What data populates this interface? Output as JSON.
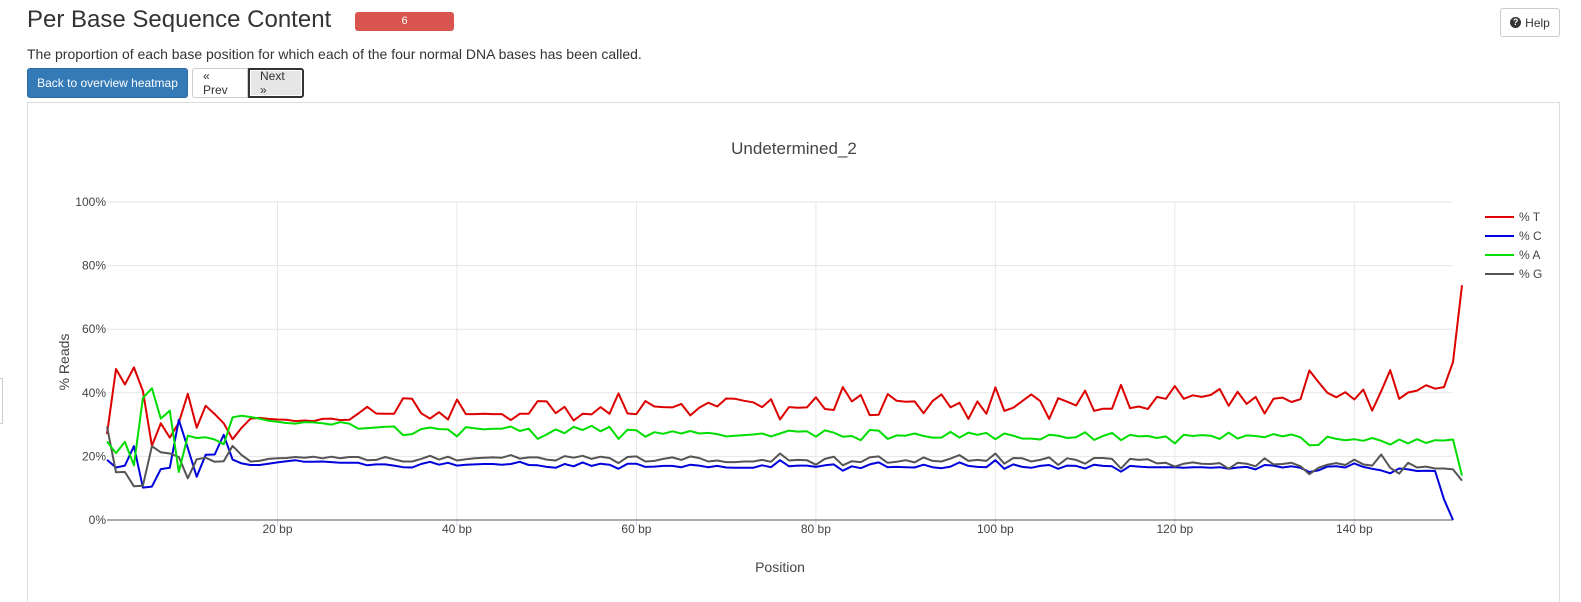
{
  "header": {
    "title": "Per Base Sequence Content",
    "badge": "6",
    "help_label": "Help",
    "description": "The proportion of each base position for which each of the four normal DNA bases has been called."
  },
  "nav": {
    "back_label": "Back to overview heatmap",
    "prev_label": "« Prev",
    "next_label": "Next »"
  },
  "chart_data": {
    "type": "line",
    "title": "Undetermined_2",
    "xlabel": "Position",
    "ylabel": "% Reads",
    "xlim": [
      1,
      151
    ],
    "ylim": [
      0,
      100
    ],
    "x_ticks": [
      {
        "value": 20,
        "label": "20 bp"
      },
      {
        "value": 40,
        "label": "40 bp"
      },
      {
        "value": 60,
        "label": "60 bp"
      },
      {
        "value": 80,
        "label": "80 bp"
      },
      {
        "value": 100,
        "label": "100 bp"
      },
      {
        "value": 120,
        "label": "120 bp"
      },
      {
        "value": 140,
        "label": "140 bp"
      }
    ],
    "y_ticks": [
      {
        "value": 0,
        "label": "0%"
      },
      {
        "value": 20,
        "label": "20%"
      },
      {
        "value": 40,
        "label": "40%"
      },
      {
        "value": 60,
        "label": "60%"
      },
      {
        "value": 80,
        "label": "80%"
      },
      {
        "value": 100,
        "label": "100%"
      }
    ],
    "grid": true,
    "legend_position": "top-right",
    "series": [
      {
        "name": "% T",
        "color": "#dd0000",
        "values": [
          27.0,
          47.5,
          42.6,
          48.0,
          40.6,
          23.3,
          30.4,
          25.9,
          30.6,
          39.7,
          29.0,
          35.9,
          33.3,
          30.4,
          25.4,
          29.0,
          31.9,
          32.1,
          31.8,
          31.6,
          31.5,
          31.1,
          31.3,
          31.1,
          31.8,
          31.9,
          31.4,
          31.5,
          33.5,
          35.6,
          33.5,
          33.4,
          33.4,
          38.3,
          38.1,
          33.6,
          31.9,
          33.9,
          31.6,
          37.9,
          33.3,
          33.3,
          33.4,
          33.3,
          33.3,
          31.4,
          33.4,
          33.4,
          37.4,
          37.3,
          33.6,
          35.6,
          31.3,
          33.4,
          33.2,
          35.5,
          33.4,
          39.8,
          33.5,
          33.3,
          37.4,
          35.7,
          35.5,
          35.4,
          36.5,
          32.9,
          35.3,
          36.9,
          35.7,
          38.2,
          38.1,
          37.5,
          37.0,
          35.5,
          38.0,
          31.6,
          35.5,
          35.3,
          35.4,
          38.6,
          34.9,
          34.6,
          41.8,
          37.3,
          39.3,
          33.0,
          33.1,
          39.6,
          37.5,
          37.2,
          37.3,
          33.6,
          37.4,
          39.5,
          35.4,
          36.9,
          31.8,
          37.3,
          33.4,
          41.7,
          34.3,
          35.3,
          37.4,
          39.5,
          37.4,
          31.8,
          38.3,
          37.2,
          36.0,
          40.7,
          34.3,
          35.0,
          35.0,
          42.5,
          35.2,
          35.7,
          34.9,
          38.7,
          38.1,
          42.1,
          38.1,
          39.2,
          38.7,
          39.3,
          41.2,
          35.9,
          40.3,
          36.5,
          38.7,
          33.5,
          38.1,
          38.5,
          37.1,
          38.0,
          47.0,
          43.4,
          40.0,
          38.6,
          40.2,
          37.9,
          41.0,
          34.4,
          40.5,
          47.1,
          38.1,
          40.1,
          40.7,
          42.4,
          41.3,
          41.8,
          49.7,
          73.8
        ]
      },
      {
        "name": "% C",
        "color": "#0000dd",
        "values": [
          18.9,
          16.5,
          17.1,
          23.2,
          10.2,
          10.5,
          16.0,
          16.4,
          31.5,
          22.6,
          13.6,
          20.5,
          20.6,
          26.8,
          19.0,
          17.8,
          17.3,
          17.3,
          17.7,
          18.1,
          18.5,
          18.8,
          18.3,
          18.3,
          18.4,
          18.2,
          18.0,
          18.0,
          18.0,
          17.2,
          17.5,
          17.5,
          17.1,
          16.6,
          16.5,
          17.6,
          18.3,
          17.4,
          18.0,
          17.1,
          17.4,
          17.5,
          17.6,
          17.6,
          17.4,
          17.6,
          18.3,
          17.3,
          17.2,
          16.7,
          16.4,
          17.6,
          16.9,
          18.1,
          17.0,
          17.7,
          17.4,
          16.1,
          17.7,
          17.7,
          16.7,
          16.8,
          17.0,
          17.0,
          16.6,
          17.4,
          17.1,
          16.6,
          17.0,
          16.5,
          16.4,
          16.4,
          16.4,
          17.2,
          16.6,
          18.8,
          16.9,
          17.1,
          17.1,
          16.7,
          17.2,
          17.5,
          15.5,
          16.9,
          16.3,
          17.5,
          18.1,
          16.6,
          16.7,
          16.6,
          16.5,
          17.4,
          16.6,
          16.3,
          16.8,
          18.1,
          17.0,
          16.7,
          16.6,
          18.8,
          16.1,
          17.5,
          16.7,
          16.4,
          17.0,
          17.3,
          16.1,
          17.1,
          17.0,
          16.2,
          17.4,
          17.0,
          16.9,
          15.2,
          17.0,
          16.8,
          16.6,
          16.6,
          16.6,
          16.6,
          16.4,
          16.6,
          16.6,
          16.4,
          16.6,
          16.1,
          16.5,
          16.7,
          15.9,
          17.3,
          17.1,
          16.5,
          16.9,
          16.4,
          15.1,
          15.6,
          16.8,
          16.9,
          16.5,
          17.8,
          16.7,
          16.1,
          15.6,
          14.7,
          16.2,
          15.9,
          15.4,
          15.5,
          15.4,
          6.5,
          0.0
        ]
      },
      {
        "name": "% G",
        "color": "#555555",
        "values": [
          29.4,
          15.0,
          15.1,
          10.6,
          10.8,
          23.2,
          21.3,
          20.9,
          19.8,
          13.1,
          19.1,
          19.6,
          18.3,
          18.5,
          23.3,
          20.4,
          18.4,
          18.6,
          19.2,
          19.4,
          19.5,
          19.8,
          19.6,
          19.9,
          19.4,
          19.9,
          19.4,
          19.8,
          19.8,
          18.8,
          18.9,
          19.8,
          19.1,
          18.4,
          18.4,
          19.2,
          20.2,
          19.0,
          19.9,
          18.7,
          19.1,
          19.4,
          19.6,
          19.7,
          19.6,
          20.4,
          19.3,
          19.7,
          19.7,
          19.0,
          18.7,
          20.1,
          19.6,
          20.2,
          19.2,
          19.9,
          19.5,
          17.9,
          19.8,
          20.0,
          18.4,
          18.6,
          19.2,
          19.7,
          18.9,
          20.0,
          19.5,
          18.4,
          18.7,
          18.2,
          18.2,
          18.4,
          18.4,
          18.9,
          18.3,
          20.9,
          18.7,
          18.9,
          18.8,
          17.4,
          19.2,
          19.9,
          17.2,
          18.5,
          18.2,
          19.7,
          20.0,
          18.0,
          18.3,
          18.8,
          18.1,
          19.7,
          18.6,
          18.4,
          19.3,
          20.4,
          18.6,
          18.9,
          18.6,
          20.9,
          17.7,
          19.5,
          19.4,
          18.4,
          18.9,
          19.7,
          17.3,
          19.4,
          18.9,
          17.7,
          19.5,
          19.5,
          19.2,
          16.2,
          19.2,
          18.9,
          19.1,
          17.8,
          18.0,
          16.8,
          17.7,
          18.1,
          17.7,
          17.6,
          17.9,
          16.1,
          18.0,
          17.7,
          16.9,
          19.4,
          17.5,
          17.6,
          18.0,
          16.9,
          14.4,
          16.4,
          17.4,
          17.9,
          17.3,
          19.0,
          17.5,
          17.1,
          20.6,
          16.4,
          14.6,
          18.0,
          16.5,
          16.8,
          16.2,
          16.2,
          15.9,
          12.4
        ]
      },
      {
        "name": "% A",
        "color": "#00dd00",
        "values": [
          24.7,
          21.0,
          24.6,
          17.2,
          38.4,
          41.4,
          31.9,
          34.4,
          15.1,
          26.5,
          25.8,
          26.0,
          25.3,
          23.8,
          32.3,
          32.8,
          32.4,
          31.9,
          31.2,
          30.9,
          30.5,
          30.3,
          30.8,
          30.7,
          30.4,
          30.0,
          30.8,
          30.3,
          28.7,
          28.9,
          29.1,
          29.3,
          29.4,
          26.7,
          27.0,
          28.6,
          29.1,
          28.6,
          28.5,
          26.3,
          29.2,
          28.8,
          28.5,
          28.7,
          28.7,
          29.4,
          28.0,
          28.7,
          25.5,
          26.9,
          28.5,
          27.3,
          29.3,
          28.3,
          29.6,
          27.9,
          29.3,
          25.5,
          28.4,
          28.2,
          26.2,
          27.6,
          27.1,
          27.9,
          27.2,
          28.0,
          27.2,
          27.4,
          27.0,
          26.3,
          26.5,
          26.7,
          26.9,
          27.2,
          26.3,
          27.2,
          28.1,
          27.8,
          27.9,
          26.2,
          28.2,
          27.5,
          26.2,
          26.4,
          25.1,
          28.3,
          28.1,
          25.5,
          26.6,
          26.5,
          27.2,
          26.4,
          25.9,
          25.9,
          27.7,
          25.9,
          27.5,
          26.8,
          27.4,
          25.4,
          27.2,
          26.5,
          25.6,
          25.6,
          25.3,
          26.8,
          26.5,
          25.8,
          26.0,
          27.6,
          25.2,
          26.4,
          27.4,
          25.1,
          26.8,
          26.3,
          26.4,
          25.8,
          26.3,
          24.1,
          26.8,
          26.4,
          26.7,
          26.5,
          25.5,
          27.5,
          25.6,
          26.6,
          26.4,
          26.0,
          27.0,
          26.3,
          26.9,
          26.0,
          23.5,
          23.6,
          26.2,
          25.5,
          25.1,
          25.4,
          24.9,
          25.8,
          24.9,
          23.7,
          25.3,
          24.1,
          25.4,
          24.2,
          25.1,
          25.0,
          25.3,
          14.0
        ]
      }
    ]
  }
}
